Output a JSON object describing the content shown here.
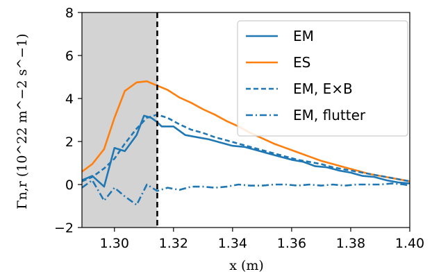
{
  "chart_data": {
    "type": "line",
    "xlabel": "x (m)",
    "ylabel": "Γn,r (10^22 m^−2 s^−1)",
    "xlim": [
      1.289,
      1.4
    ],
    "ylim": [
      -2,
      8
    ],
    "xticks": [
      1.3,
      1.32,
      1.34,
      1.36,
      1.38,
      1.4
    ],
    "xtick_labels": [
      "1.30",
      "1.32",
      "1.34",
      "1.36",
      "1.38",
      "1.40"
    ],
    "yticks": [
      -2,
      0,
      2,
      4,
      6,
      8
    ],
    "ytick_labels": [
      "−2",
      "0",
      "2",
      "4",
      "6",
      "8"
    ],
    "shaded_region": {
      "x_from": 1.289,
      "x_to": 1.3145,
      "color": "#d3d3d3"
    },
    "vertical_line": {
      "x": 1.3145,
      "style": "dashed",
      "color": "#000000"
    },
    "legend_position": "top-right",
    "series": [
      {
        "name": "EM",
        "color": "#1f77b4",
        "dash": "solid",
        "x": [
          1.289,
          1.2925,
          1.2965,
          1.3,
          1.3035,
          1.3075,
          1.31,
          1.3125,
          1.3145,
          1.316,
          1.32,
          1.324,
          1.328,
          1.332,
          1.336,
          1.34,
          1.344,
          1.348,
          1.352,
          1.356,
          1.36,
          1.364,
          1.368,
          1.372,
          1.376,
          1.38,
          1.384,
          1.388,
          1.392,
          1.396,
          1.4
        ],
        "y": [
          0.2,
          0.4,
          -0.1,
          1.7,
          1.55,
          2.3,
          3.2,
          3.1,
          2.9,
          2.7,
          2.7,
          2.3,
          2.2,
          2.1,
          1.95,
          1.8,
          1.75,
          1.6,
          1.45,
          1.3,
          1.15,
          1.05,
          0.85,
          0.8,
          0.65,
          0.55,
          0.4,
          0.35,
          0.2,
          0.1,
          0.05
        ]
      },
      {
        "name": "ES",
        "color": "#ff7f0e",
        "dash": "solid",
        "x": [
          1.289,
          1.2925,
          1.2965,
          1.3,
          1.3035,
          1.3075,
          1.311,
          1.3145,
          1.318,
          1.322,
          1.326,
          1.33,
          1.334,
          1.338,
          1.342,
          1.346,
          1.35,
          1.354,
          1.358,
          1.362,
          1.366,
          1.37,
          1.374,
          1.378,
          1.382,
          1.386,
          1.39,
          1.394,
          1.398,
          1.4
        ],
        "y": [
          0.6,
          0.95,
          1.65,
          3.1,
          4.35,
          4.75,
          4.8,
          4.6,
          4.4,
          4.05,
          3.8,
          3.5,
          3.25,
          2.95,
          2.7,
          2.4,
          2.15,
          1.9,
          1.7,
          1.5,
          1.3,
          1.1,
          0.95,
          0.8,
          0.65,
          0.5,
          0.4,
          0.3,
          0.2,
          0.15
        ]
      },
      {
        "name": "EM, E×B",
        "color": "#1f77b4",
        "dash": "dashed",
        "x": [
          1.289,
          1.2925,
          1.2965,
          1.3,
          1.3035,
          1.3075,
          1.311,
          1.3145,
          1.318,
          1.322,
          1.326,
          1.33,
          1.334,
          1.338,
          1.342,
          1.346,
          1.35,
          1.354,
          1.358,
          1.362,
          1.366,
          1.37,
          1.374,
          1.378,
          1.382,
          1.386,
          1.39,
          1.394,
          1.398,
          1.4
        ],
        "y": [
          0.15,
          0.35,
          0.75,
          1.2,
          1.9,
          2.6,
          3.1,
          3.25,
          3.1,
          2.8,
          2.55,
          2.4,
          2.2,
          2.05,
          1.9,
          1.75,
          1.6,
          1.45,
          1.3,
          1.15,
          1.05,
          0.95,
          0.8,
          0.7,
          0.6,
          0.5,
          0.4,
          0.3,
          0.2,
          0.15
        ]
      },
      {
        "name": "EM, flutter",
        "color": "#1f77b4",
        "dash": "dashdot",
        "x": [
          1.289,
          1.2925,
          1.2965,
          1.3,
          1.3035,
          1.3075,
          1.311,
          1.3145,
          1.318,
          1.322,
          1.326,
          1.33,
          1.334,
          1.338,
          1.342,
          1.346,
          1.35,
          1.354,
          1.358,
          1.362,
          1.366,
          1.37,
          1.374,
          1.378,
          1.382,
          1.386,
          1.39,
          1.394,
          1.398,
          1.4
        ],
        "y": [
          -0.15,
          0.2,
          -0.75,
          -0.15,
          -0.55,
          -0.95,
          0.0,
          -0.3,
          -0.15,
          -0.25,
          -0.1,
          -0.1,
          -0.15,
          -0.1,
          0.0,
          -0.05,
          -0.05,
          0.0,
          0.0,
          -0.05,
          0.0,
          -0.05,
          0.0,
          -0.05,
          0.0,
          0.0,
          0.0,
          0.05,
          0.0,
          -0.05
        ]
      }
    ]
  }
}
